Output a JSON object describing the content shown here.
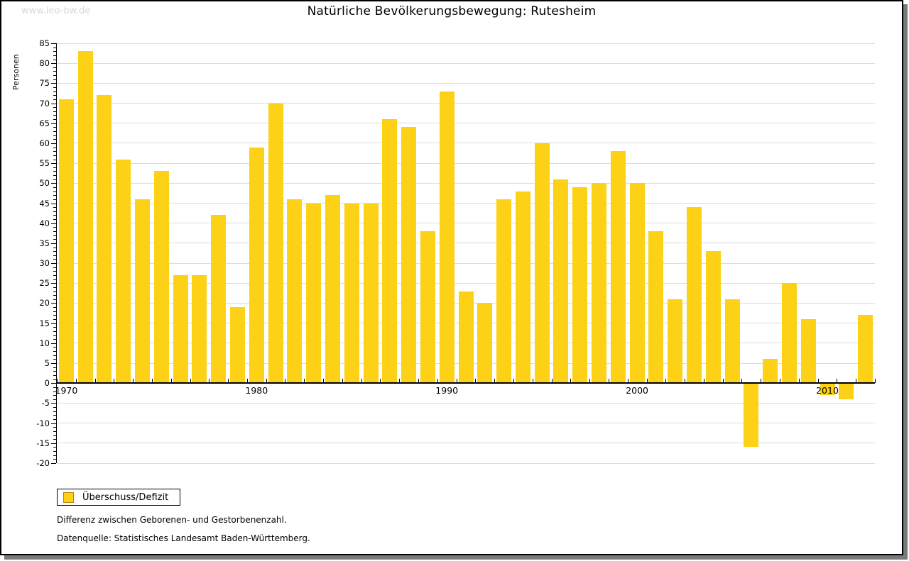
{
  "watermark": "www.leo-bw.de",
  "header": {
    "title": "Natürliche Bevölkerungsbewegung: Rutesheim"
  },
  "legend": {
    "label": "Überschuss/Defizit",
    "swatch_color": "#fcd116"
  },
  "footnotes": {
    "line1": "Differenz zwischen Geborenen- und Gestorbenenzahl.",
    "line2": "Datenquelle: Statistisches Landesamt Baden-Württemberg."
  },
  "colors": {
    "bar": "#fcd116",
    "legend_swatch_border": "#b8860b",
    "gridline": "#dcdcdc",
    "axis": "#000000",
    "watermark": "#d8d8d8",
    "frame_shadow": "#7b7b7b"
  },
  "chart_data": {
    "type": "bar",
    "title": "Natürliche Bevölkerungsbewegung: Rutesheim",
    "xlabel": "",
    "ylabel": "Personen",
    "series_name": "Überschuss/Defizit",
    "years": [
      1970,
      1971,
      1972,
      1973,
      1974,
      1975,
      1976,
      1977,
      1978,
      1979,
      1980,
      1981,
      1982,
      1983,
      1984,
      1985,
      1986,
      1987,
      1988,
      1989,
      1990,
      1991,
      1992,
      1993,
      1994,
      1995,
      1996,
      1997,
      1998,
      1999,
      2000,
      2001,
      2002,
      2003,
      2004,
      2005,
      2006,
      2007,
      2008,
      2009,
      2010,
      2011,
      2012
    ],
    "values": [
      71,
      83,
      72,
      56,
      46,
      53,
      27,
      27,
      42,
      19,
      59,
      70,
      46,
      45,
      47,
      45,
      45,
      66,
      64,
      38,
      73,
      23,
      20,
      46,
      48,
      60,
      51,
      49,
      50,
      58,
      50,
      38,
      21,
      44,
      33,
      21,
      -16,
      6,
      25,
      16,
      -3,
      -4,
      17
    ],
    "ylim": [
      -20,
      85
    ],
    "y_tick_step": 5,
    "y_minor_tick_step": 1,
    "x_tick_labels": [
      "1970",
      "1980",
      "1990",
      "2000",
      "2010"
    ],
    "grid": true,
    "legend_position": "bottom-left"
  }
}
